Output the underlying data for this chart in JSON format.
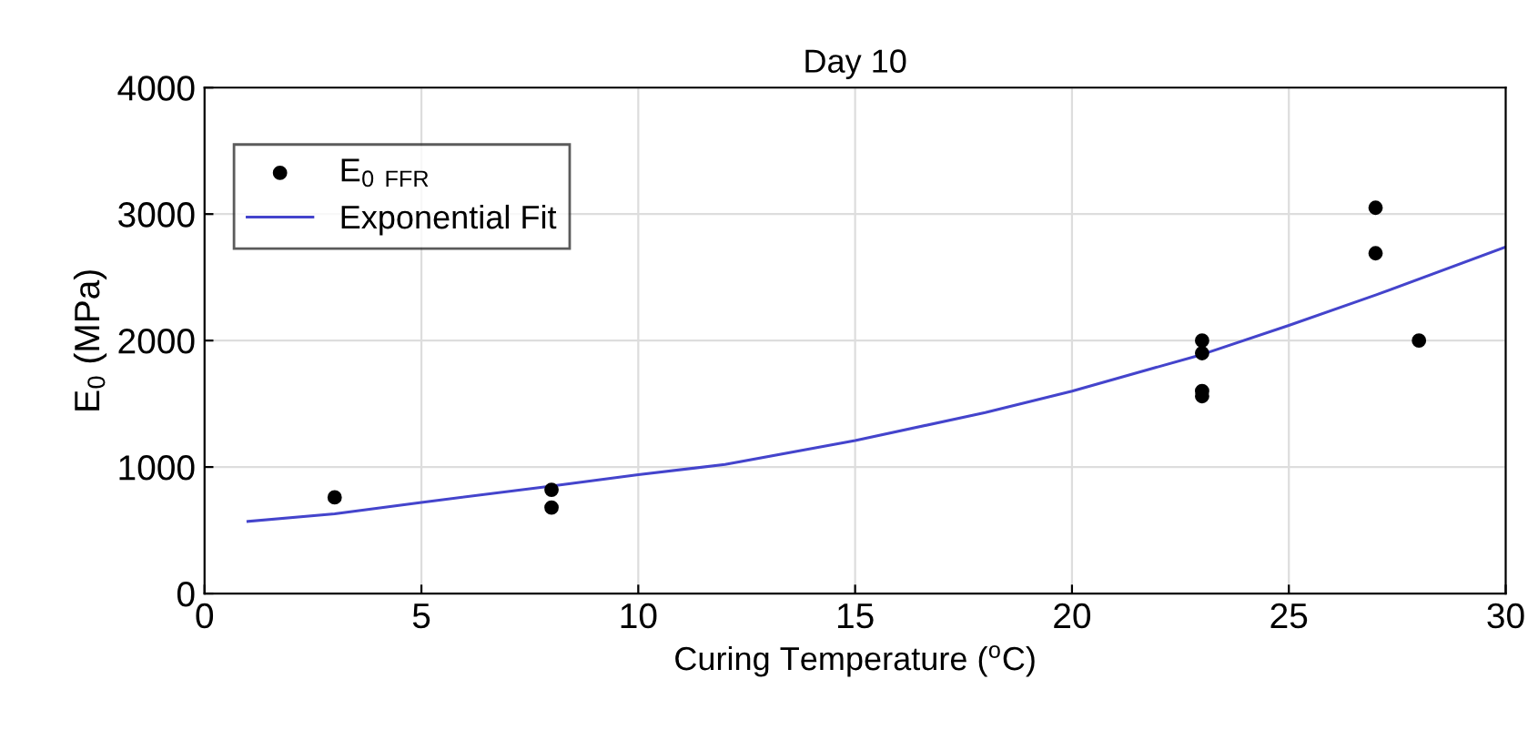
{
  "chart_data": {
    "type": "scatter",
    "title": "Day 10",
    "xlabel": "Curing Temperature ($^{o}$C)",
    "ylabel": "E$_{0}$ (MPa)",
    "series": [
      {
        "name": "E$_{0}$ $_{FFR}$",
        "color": "#000000",
        "marker": "circle",
        "x": [
          3,
          8,
          8,
          23,
          23,
          23,
          23,
          27,
          27,
          28
        ],
        "values": [
          760,
          820,
          680,
          2000,
          1900,
          1600,
          1560,
          3050,
          2690,
          2000
        ]
      },
      {
        "name": "Exponential Fit",
        "type": "line",
        "color": "#4444cc",
        "marker": "none",
        "x": [
          1,
          3,
          5,
          8,
          10,
          12,
          15,
          18,
          20,
          23,
          25,
          27,
          30
        ],
        "values": [
          570,
          630,
          720,
          850,
          940,
          1020,
          1210,
          1430,
          1600,
          1890,
          2120,
          2360,
          2740
        ]
      }
    ],
    "xlim": [
      0,
      30
    ],
    "xticks": [
      0,
      5,
      10,
      15,
      20,
      25,
      30
    ],
    "ylim": [
      0,
      4000
    ],
    "yticks": [
      0,
      1000,
      2000,
      3000,
      4000
    ],
    "grid": true,
    "legend": "top left"
  }
}
